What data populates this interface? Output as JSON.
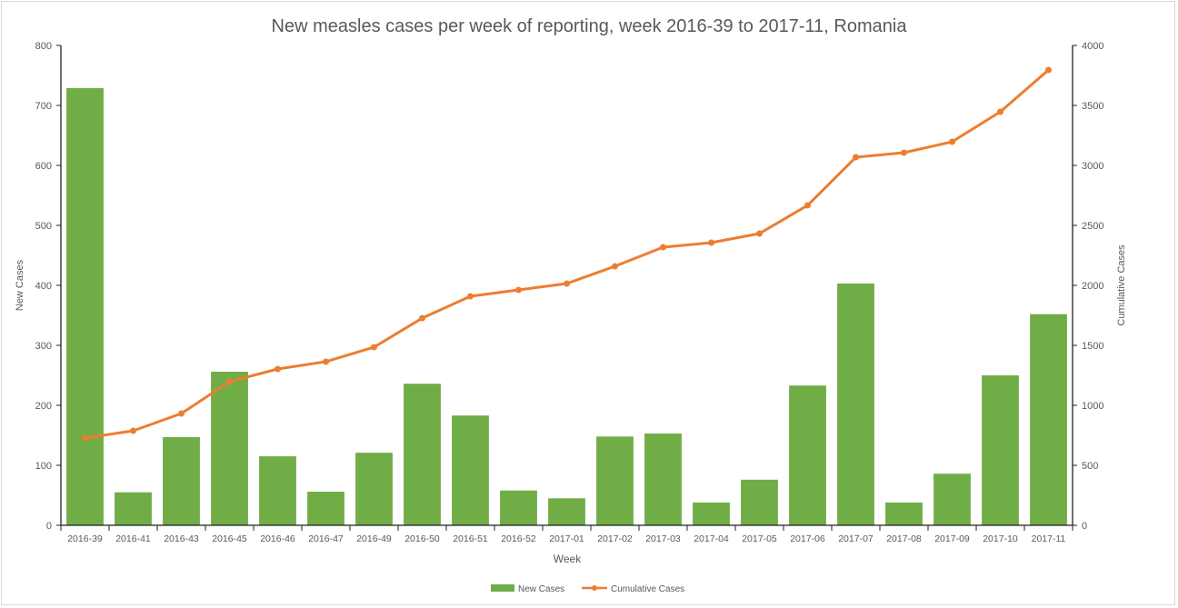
{
  "chart_data": {
    "type": "bar+line",
    "title": "New measles cases per week of reporting, week 2016-39 to 2017-11, Romania",
    "xlabel": "Week",
    "ylabel": "New Cases",
    "y2label": "Cumulative Cases",
    "ylim": [
      0,
      800
    ],
    "y2lim": [
      0,
      4000
    ],
    "yticks": [
      0,
      100,
      200,
      300,
      400,
      500,
      600,
      700,
      800
    ],
    "y2ticks": [
      0,
      500,
      1000,
      1500,
      2000,
      2500,
      3000,
      3500,
      4000
    ],
    "legend_position": "bottom",
    "grid": false,
    "categories": [
      "2016-39",
      "2016-41",
      "2016-43",
      "2016-45",
      "2016-46",
      "2016-47",
      "2016-49",
      "2016-50",
      "2016-51",
      "2016-52",
      "2017-01",
      "2017-02",
      "2017-03",
      "2017-04",
      "2017-05",
      "2017-06",
      "2017-07",
      "2017-08",
      "2017-09",
      "2017-10",
      "2017-11"
    ],
    "series": [
      {
        "name": "New Cases",
        "type": "bar",
        "axis": "left",
        "color": "#70ad47",
        "values": [
          729,
          55,
          147,
          256,
          115,
          56,
          121,
          236,
          183,
          58,
          45,
          148,
          153,
          38,
          76,
          233,
          403,
          38,
          86,
          250,
          352
        ]
      },
      {
        "name": "Cumulative Cases",
        "type": "line",
        "axis": "right",
        "color": "#ed7d31",
        "values": [
          727,
          788,
          932,
          1197,
          1303,
          1364,
          1485,
          1727,
          1909,
          1962,
          2015,
          2159,
          2318,
          2356,
          2432,
          2667,
          3068,
          3106,
          3197,
          3447,
          3795
        ]
      }
    ]
  }
}
